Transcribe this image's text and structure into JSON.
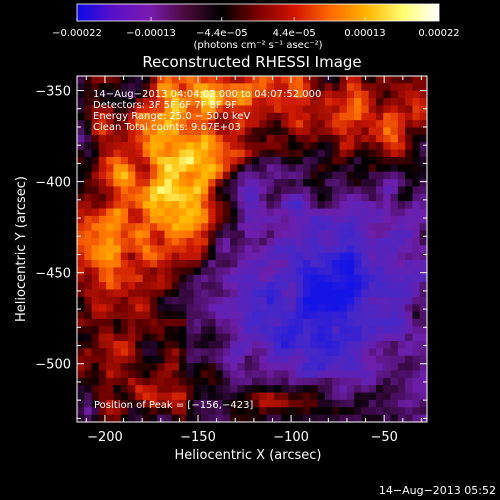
{
  "chart_data": {
    "type": "heatmap",
    "title": "Reconstructed RHESSI Image",
    "xlabel": "Heliocentric X (arcsec)",
    "ylabel": "Heliocentric Y (arcsec)",
    "xlim": [
      -215,
      -27
    ],
    "ylim": [
      -532,
      -342
    ],
    "x_ticks": [
      -200,
      -150,
      -100,
      -50
    ],
    "x_tick_labels": [
      "−200",
      "−150",
      "−100",
      "−50"
    ],
    "y_ticks": [
      -350,
      -400,
      -450,
      -500
    ],
    "y_tick_labels": [
      "−350",
      "−400",
      "−450",
      "−500"
    ],
    "colorbar": {
      "range": [
        -0.00022,
        0.00022
      ],
      "ticks": [
        -0.00022,
        -0.00013,
        -4.4e-05,
        4.4e-05,
        0.00013,
        0.00022
      ],
      "tick_labels": [
        "−0.00022",
        "−0.00013",
        "−4.4e−05",
        "4.4e−05",
        "0.00013",
        "0.00022"
      ],
      "unit_label": "(photons cm⁻² s⁻¹ asec⁻²)",
      "colors": [
        "#0a0ae6",
        "#5a10c8",
        "#7a1ab0",
        "#4a0a3a",
        "#000000",
        "#7a0000",
        "#d21400",
        "#ff6a00",
        "#ffb400",
        "#ffff70",
        "#ffffff"
      ]
    },
    "annotations": [
      "14−Aug−2013 04:04:02.000 to 04:07:52.000",
      "Detectors: 3F 5F 6F 7F 8F 9F",
      "Energy Range: 25.0 − 50.0 keV",
      "Clean     Total counts: 9.67E+03"
    ],
    "peak_label": "Position of Peak = [−156,−423]",
    "grid": false,
    "legend": "none"
  },
  "footer": {
    "timestamp": "14−Aug−2013 05:52"
  }
}
